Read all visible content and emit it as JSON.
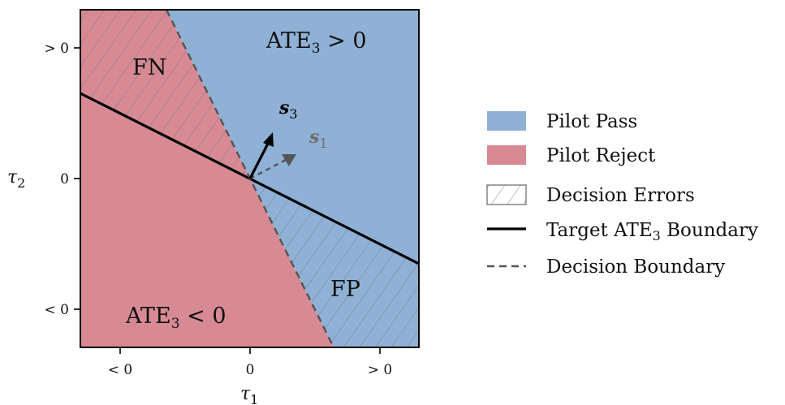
{
  "axes": {
    "x_label": "τ",
    "x_label_sub": "1",
    "y_label": "τ",
    "y_label_sub": "2",
    "x_ticks": [
      "< 0",
      "0",
      "> 0"
    ],
    "y_ticks": [
      "> 0",
      "0",
      "< 0"
    ]
  },
  "regions": {
    "positive": {
      "text": "ATE",
      "sub": "3",
      "rest": " > 0"
    },
    "negative": {
      "text": "ATE",
      "sub": "3",
      "rest": " < 0"
    },
    "false_negative": "FN",
    "false_positive": "FP"
  },
  "vectors": {
    "target": {
      "text": "s",
      "sub": "3"
    },
    "pilot": {
      "text": "s",
      "sub": "1"
    }
  },
  "legend": {
    "pass": "Pilot Pass",
    "reject": "Pilot Reject",
    "errors": "Decision Errors",
    "target_boundary": {
      "text": "Target ATE",
      "sub": "3",
      "rest": " Boundary"
    },
    "decision_boundary": "Decision Boundary"
  },
  "colors": {
    "pass": "#8fb1d6",
    "reject": "#d78a94",
    "boundary": "#000000",
    "decision": "#555555"
  }
}
